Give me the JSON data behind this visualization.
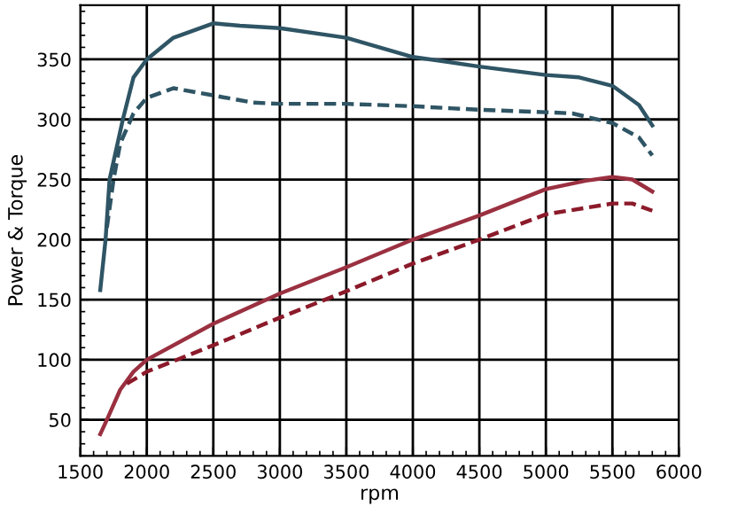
{
  "chart_data": {
    "type": "line",
    "xlabel": "rpm",
    "ylabel": "Power & Torque",
    "xlim": [
      1500,
      6000
    ],
    "ylim": [
      20,
      395
    ],
    "xticks": [
      1500,
      2000,
      2500,
      3000,
      3500,
      4000,
      4500,
      5000,
      5500,
      6000
    ],
    "yticks": [
      50,
      100,
      150,
      200,
      250,
      300,
      350
    ],
    "grid": true,
    "marker": "none",
    "series": [
      {
        "color": "#2f5565",
        "line_style": "solid",
        "x": [
          1650,
          1690,
          1720,
          1820,
          1900,
          2000,
          2200,
          2500,
          2700,
          3000,
          3500,
          4000,
          4500,
          5000,
          5250,
          5500,
          5700,
          5800
        ],
        "values": [
          158,
          200,
          250,
          300,
          335,
          350,
          368,
          380,
          378,
          376,
          368,
          352,
          344,
          337,
          335,
          328,
          312,
          295
        ]
      },
      {
        "color": "#2f5565",
        "line_style": "dashed",
        "x": [
          1700,
          1750,
          1800,
          1900,
          2000,
          2200,
          2500,
          2800,
          3000,
          3500,
          4000,
          4500,
          5000,
          5200,
          5500,
          5700,
          5800
        ],
        "values": [
          210,
          250,
          280,
          305,
          318,
          326,
          320,
          314,
          313,
          313,
          311,
          308,
          306,
          305,
          297,
          285,
          270
        ]
      },
      {
        "color": "#9a3040",
        "line_style": "solid",
        "x": [
          1650,
          1700,
          1800,
          1900,
          2000,
          2500,
          3000,
          3500,
          4000,
          4500,
          5000,
          5300,
          5500,
          5650,
          5800
        ],
        "values": [
          38,
          50,
          75,
          90,
          100,
          130,
          155,
          177,
          200,
          220,
          242,
          249,
          252,
          250,
          240
        ]
      },
      {
        "color": "#8b1a2a",
        "line_style": "dashed",
        "x": [
          1850,
          2000,
          2500,
          3000,
          3500,
          4000,
          4500,
          5000,
          5500,
          5650,
          5800
        ],
        "values": [
          80,
          90,
          112,
          135,
          157,
          180,
          200,
          221,
          230,
          230,
          224
        ]
      }
    ]
  }
}
